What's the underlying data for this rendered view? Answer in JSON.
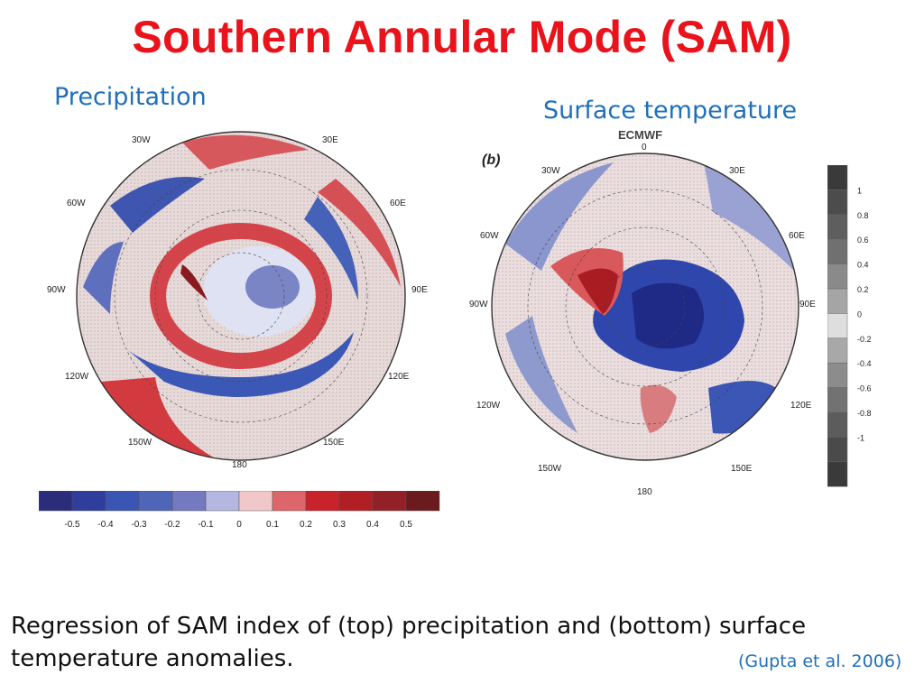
{
  "slide": {
    "title": "Southern Annular Mode (SAM)",
    "caption": "Regression of SAM index of  (top) precipitation and (bottom) surface temperature anomalies.",
    "citation": "(Gupta et al. 2006)"
  },
  "precip_panel": {
    "label": "Precipitation",
    "lon_labels": [
      "30W",
      "30E",
      "60W",
      "60E",
      "90W",
      "90E",
      "120W",
      "120E",
      "150W",
      "150E",
      "180"
    ],
    "colorbar": {
      "ticks": [
        "-0.5",
        "-0.4",
        "-0.3",
        "-0.2",
        "-0.1",
        "0",
        "0.1",
        "0.2",
        "0.3",
        "0.4",
        "0.5"
      ],
      "colors": [
        "#2b2c7a",
        "#2f3d9c",
        "#3a55b4",
        "#4f66b8",
        "#7479c0",
        "#b4b7df",
        "#f1c8c9",
        "#dc6669",
        "#c8222a",
        "#b11f25",
        "#932026",
        "#6b1a1d"
      ]
    }
  },
  "temp_panel": {
    "label": "Surface temperature",
    "corner_label": "(b)",
    "header_fragment": "ECMWF",
    "lon_labels": [
      "0",
      "30W",
      "30E",
      "60W",
      "60E",
      "90W",
      "90E",
      "120W",
      "120E",
      "150W",
      "150E",
      "180"
    ],
    "colorbar": {
      "ticks": [
        "1",
        "0.8",
        "0.6",
        "0.4",
        "0.2",
        "0",
        "-0.2",
        "-0.4",
        "-0.6",
        "-0.8",
        "-1"
      ],
      "colors": [
        "#3a3a3a",
        "#4c4c4c",
        "#5e5e5e",
        "#707070",
        "#8a8a8a",
        "#a5a5a5",
        "#dedede",
        "#a8a8a8",
        "#8c8c8c",
        "#727272",
        "#5c5c5c",
        "#4a4a4a",
        "#3a3a3a"
      ]
    }
  }
}
